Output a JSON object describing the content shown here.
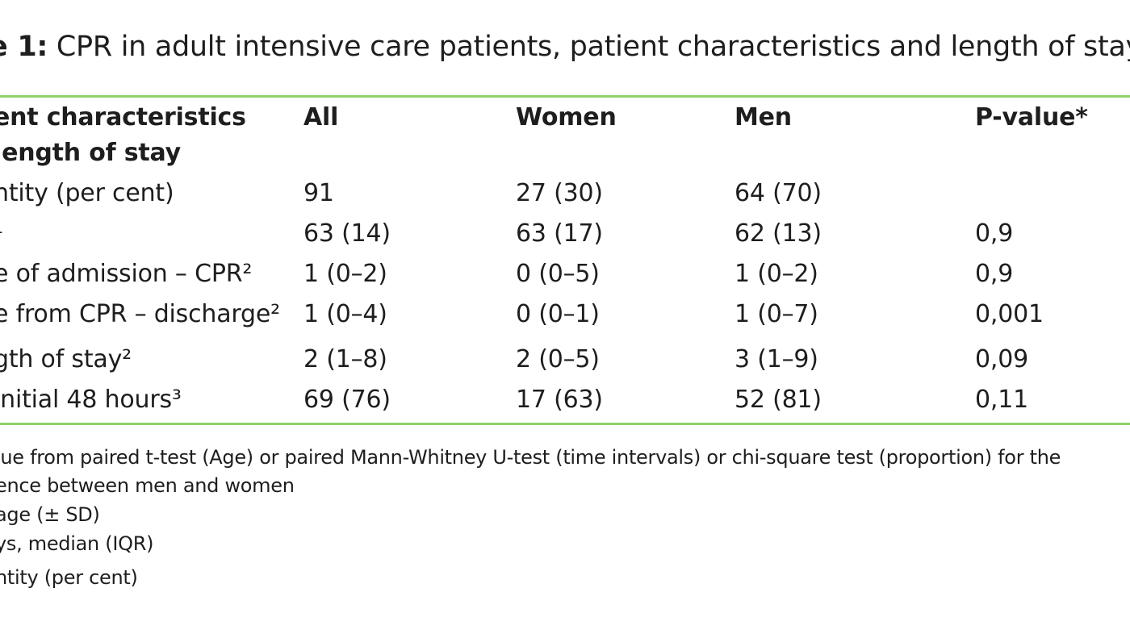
{
  "caption": {
    "lead": "e 1:",
    "text": " CPR in adult intensive care patients, patient characteristics and length of stay"
  },
  "header": {
    "label_line1": "ent characteristics",
    "label_line2": "length of stay",
    "all": "All",
    "women": "Women",
    "men": "Men",
    "pvalue": "P-value*"
  },
  "rows": [
    {
      "label": "ntity (per cent)",
      "all": "91",
      "women": "27 (30)",
      "men": "64 (70)",
      "p": ""
    },
    {
      "label": "¹",
      "all": "63 (14)",
      "women": "63 (17)",
      "men": "62 (13)",
      "p": "0,9"
    },
    {
      "label": "e of admission – CPR²",
      "all": "1 (0–2)",
      "women": "0 (0–5)",
      "men": "1 (0–2)",
      "p": "0,9"
    },
    {
      "label": "e from CPR – discharge²",
      "all": "1 (0–4)",
      "women": "0 (0–1)",
      "men": "1 (0–7)",
      "p": "0,001"
    },
    {
      "label": "gth of stay²",
      "all": "2 (1–8)",
      "women": "2 (0–5)",
      "men": "3 (1–9)",
      "p": "0,09"
    },
    {
      "label": " initial 48 hours³",
      "all": "69 (76)",
      "women": "17 (63)",
      "men": "52 (81)",
      "p": "0,11"
    }
  ],
  "footnotes": [
    "lue from paired t-test (Age) or paired Mann-Whitney U-test (time intervals) or chi-square test (proportion) for the",
    "ence between men and women",
    "age (± SD)",
    "ys, median (IQR)",
    "ntity (per cent)"
  ],
  "colors": {
    "rule": "#8fd16a",
    "text": "#1e1e1e"
  }
}
